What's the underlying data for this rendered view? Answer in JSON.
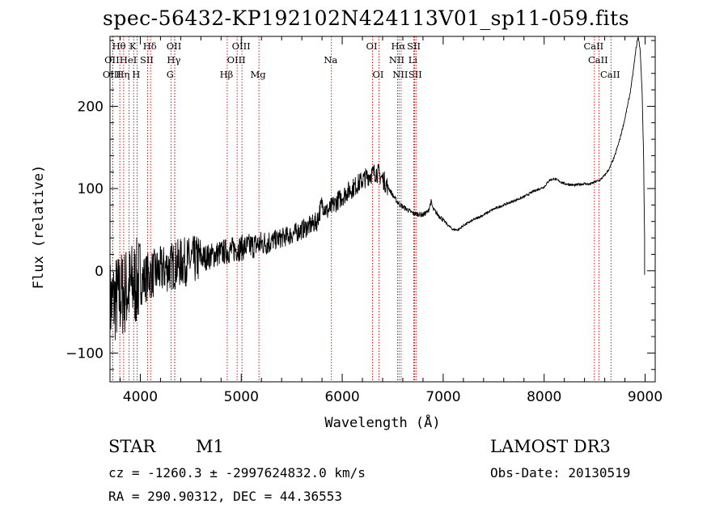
{
  "header": {
    "title": "spec-56432-KP192102N424113V01_sp11-059.fits"
  },
  "info": {
    "object_type": "STAR",
    "subclass": "M1",
    "survey": "LAMOST DR3",
    "cz_line": "cz = -1260.3 ± -2997624832.0 km/s",
    "obs_date_line": "Obs-Date: 20130519",
    "coords_line": "RA = 290.90312, DEC =  44.36553"
  },
  "chart_data": {
    "type": "line",
    "title": "spec-56432-KP192102N424113V01_sp11-059.fits",
    "xlabel": "Wavelength (Å)",
    "ylabel": "Flux (relative)",
    "xlim": [
      3700,
      9100
    ],
    "ylim": [
      -135,
      285
    ],
    "xticks": [
      4000,
      5000,
      6000,
      7000,
      8000,
      9000
    ],
    "yticks": [
      -100,
      0,
      100,
      200
    ],
    "line_color": "#000000",
    "marker_color": "#cc0000",
    "spectrum_envelope": {
      "x": [
        3700,
        3750,
        3800,
        3850,
        3900,
        3950,
        4000,
        4100,
        4200,
        4300,
        4400,
        4500,
        4600,
        4700,
        4800,
        4900,
        5000,
        5100,
        5200,
        5300,
        5400,
        5500,
        5600,
        5700,
        5750,
        5800,
        5850,
        5900,
        5950,
        6000,
        6050,
        6100,
        6150,
        6200,
        6250,
        6300,
        6330,
        6360,
        6400,
        6450,
        6500,
        6550,
        6600,
        6650,
        6700,
        6750,
        6800,
        6850,
        6880,
        6900,
        6950,
        7000,
        7050,
        7100,
        7150,
        7200,
        7300,
        7400,
        7500,
        7600,
        7700,
        7800,
        7900,
        8000,
        8050,
        8100,
        8150,
        8200,
        8300,
        8400,
        8450,
        8500,
        8550,
        8600,
        8650,
        8700,
        8750,
        8800,
        8850,
        8880,
        8910,
        8930,
        8950,
        8970,
        8985,
        8995
      ],
      "y": [
        -40,
        -35,
        -30,
        -25,
        -20,
        -15,
        -12,
        -5,
        0,
        5,
        10,
        12,
        15,
        18,
        22,
        25,
        28,
        30,
        33,
        36,
        40,
        44,
        50,
        56,
        60,
        82,
        72,
        78,
        85,
        90,
        96,
        100,
        105,
        110,
        115,
        118,
        120,
        118,
        112,
        103,
        92,
        83,
        78,
        74,
        70,
        69,
        68,
        72,
        84,
        75,
        68,
        62,
        55,
        50,
        50,
        55,
        62,
        68,
        75,
        80,
        85,
        90,
        97,
        102,
        110,
        112,
        109,
        106,
        104,
        106,
        105,
        108,
        110,
        116,
        125,
        140,
        160,
        185,
        215,
        240,
        270,
        285,
        270,
        220,
        140,
        40
      ]
    },
    "lines": [
      {
        "label": "Hθ",
        "wavelength": 3797,
        "row": 0
      },
      {
        "label": "K",
        "wavelength": 3934,
        "row": 0
      },
      {
        "label": "Hδ",
        "wavelength": 4102,
        "row": 0
      },
      {
        "label": "OII",
        "wavelength": 4341,
        "row": 0
      },
      {
        "label": "OIII",
        "wavelength": 5007,
        "row": 0
      },
      {
        "label": "OI",
        "wavelength": 6300,
        "row": 0
      },
      {
        "label": "Hα",
        "wavelength": 6563,
        "row": 0
      },
      {
        "label": "SII",
        "wavelength": 6717,
        "row": 0
      },
      {
        "label": "CaII",
        "wavelength": 8498,
        "row": 0
      },
      {
        "label": "OII",
        "wavelength": 3727,
        "row": 1
      },
      {
        "label": "HeI",
        "wavelength": 3889,
        "row": 1
      },
      {
        "label": "SII",
        "wavelength": 4072,
        "row": 1
      },
      {
        "label": "Hγ",
        "wavelength": 4340,
        "row": 1
      },
      {
        "label": "OIII",
        "wavelength": 4959,
        "row": 1
      },
      {
        "label": "Na",
        "wavelength": 5893,
        "row": 1
      },
      {
        "label": "NII",
        "wavelength": 6548,
        "row": 1
      },
      {
        "label": "Li",
        "wavelength": 6708,
        "row": 1
      },
      {
        "label": "CaII",
        "wavelength": 8542,
        "row": 1
      },
      {
        "label": "OIII",
        "wavelength": 3727,
        "row": 2
      },
      {
        "label": "Hη",
        "wavelength": 3835,
        "row": 2
      },
      {
        "label": "H",
        "wavelength": 3968,
        "row": 2
      },
      {
        "label": "G",
        "wavelength": 4304,
        "row": 2
      },
      {
        "label": "Hβ",
        "wavelength": 4861,
        "row": 2
      },
      {
        "label": "Mg",
        "wavelength": 5175,
        "row": 2
      },
      {
        "label": "OI",
        "wavelength": 6364,
        "row": 2
      },
      {
        "label": "NII",
        "wavelength": 6583,
        "row": 2
      },
      {
        "label": "SII",
        "wavelength": 6731,
        "row": 2
      },
      {
        "label": "CaII",
        "wavelength": 8662,
        "row": 2
      }
    ]
  }
}
